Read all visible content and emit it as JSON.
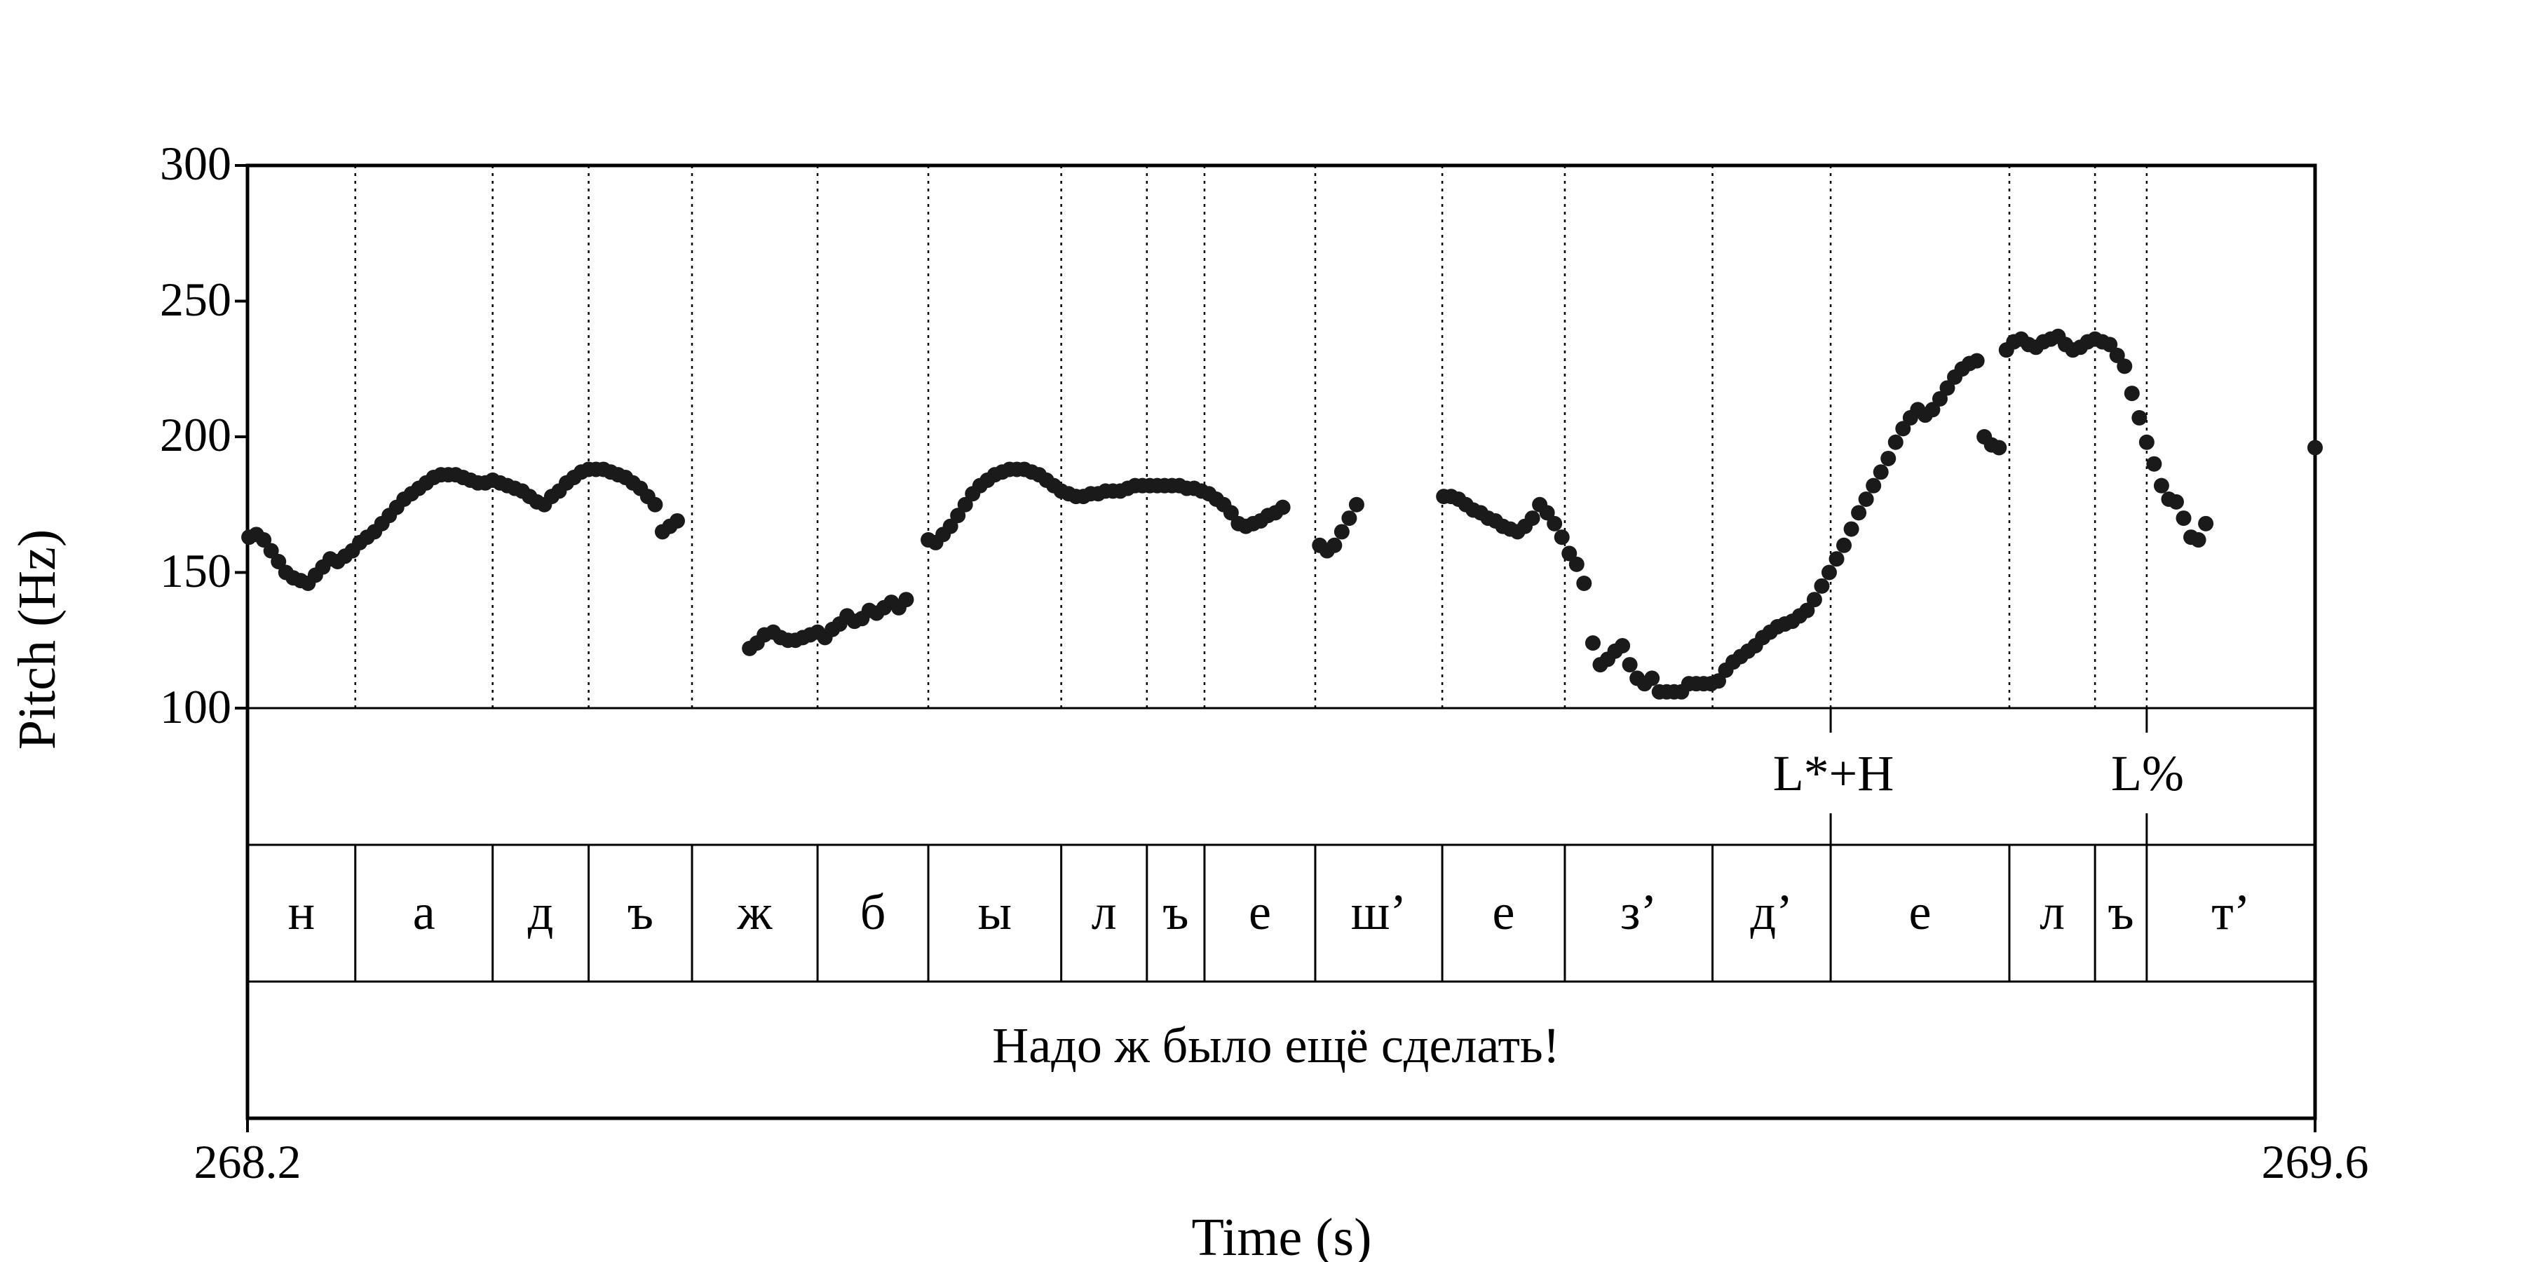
{
  "chart_data": {
    "type": "scatter",
    "xlabel": "Time (s)",
    "ylabel": "Pitch (Hz)",
    "xlim": [
      268.2,
      269.6
    ],
    "ylim": [
      100,
      300
    ],
    "x_ticks": [
      "268.2",
      "269.6"
    ],
    "y_ticks": [
      "100",
      "150",
      "200",
      "250",
      "300"
    ],
    "boundaries": [
      268.2,
      268.273,
      268.366,
      268.431,
      268.501,
      268.586,
      268.661,
      268.751,
      268.809,
      268.848,
      268.923,
      269.009,
      269.092,
      269.192,
      269.272,
      269.393,
      269.451,
      269.486,
      269.6
    ],
    "segments": [
      "н",
      "а",
      "д",
      "ъ",
      "ж",
      "б",
      "ы",
      "л",
      "ъ",
      "е",
      "ш’",
      "е",
      "з’",
      "д’",
      "е",
      "л",
      "ъ",
      "т’"
    ],
    "tones": [
      {
        "time": 269.272,
        "label": "L*+H"
      },
      {
        "time": 269.486,
        "label": "L%"
      }
    ],
    "sentence": "Надо ж было ещё сделать!",
    "pitch_points": [
      [
        268.201,
        163
      ],
      [
        268.206,
        164
      ],
      [
        268.211,
        162
      ],
      [
        268.216,
        158
      ],
      [
        268.221,
        154
      ],
      [
        268.226,
        150
      ],
      [
        268.231,
        148
      ],
      [
        268.236,
        147
      ],
      [
        268.241,
        146
      ],
      [
        268.246,
        149
      ],
      [
        268.251,
        152
      ],
      [
        268.256,
        155
      ],
      [
        268.261,
        154
      ],
      [
        268.266,
        156
      ],
      [
        268.271,
        158
      ],
      [
        268.276,
        161
      ],
      [
        268.281,
        163
      ],
      [
        268.286,
        165
      ],
      [
        268.291,
        168
      ],
      [
        268.296,
        171
      ],
      [
        268.301,
        174
      ],
      [
        268.306,
        177
      ],
      [
        268.311,
        179
      ],
      [
        268.316,
        181
      ],
      [
        268.321,
        183
      ],
      [
        268.326,
        185
      ],
      [
        268.331,
        186
      ],
      [
        268.336,
        186
      ],
      [
        268.341,
        186
      ],
      [
        268.346,
        185
      ],
      [
        268.351,
        184
      ],
      [
        268.356,
        183
      ],
      [
        268.361,
        183
      ],
      [
        268.366,
        184
      ],
      [
        268.371,
        183
      ],
      [
        268.376,
        182
      ],
      [
        268.381,
        181
      ],
      [
        268.386,
        180
      ],
      [
        268.391,
        178
      ],
      [
        268.396,
        176
      ],
      [
        268.401,
        175
      ],
      [
        268.406,
        178
      ],
      [
        268.411,
        180
      ],
      [
        268.416,
        183
      ],
      [
        268.421,
        185
      ],
      [
        268.426,
        187
      ],
      [
        268.431,
        188
      ],
      [
        268.436,
        188
      ],
      [
        268.441,
        188
      ],
      [
        268.446,
        187
      ],
      [
        268.451,
        186
      ],
      [
        268.456,
        185
      ],
      [
        268.461,
        183
      ],
      [
        268.466,
        181
      ],
      [
        268.471,
        178
      ],
      [
        268.476,
        175
      ],
      [
        268.481,
        165
      ],
      [
        268.486,
        167
      ],
      [
        268.491,
        169
      ],
      [
        268.54,
        122
      ],
      [
        268.545,
        124
      ],
      [
        268.55,
        127
      ],
      [
        268.556,
        128
      ],
      [
        268.561,
        126
      ],
      [
        268.566,
        125
      ],
      [
        268.571,
        125
      ],
      [
        268.576,
        126
      ],
      [
        268.581,
        127
      ],
      [
        268.586,
        128
      ],
      [
        268.591,
        126
      ],
      [
        268.596,
        129
      ],
      [
        268.601,
        131
      ],
      [
        268.606,
        134
      ],
      [
        268.611,
        132
      ],
      [
        268.616,
        133
      ],
      [
        268.621,
        136
      ],
      [
        268.626,
        135
      ],
      [
        268.631,
        137
      ],
      [
        268.636,
        139
      ],
      [
        268.641,
        137
      ],
      [
        268.646,
        140
      ],
      [
        268.661,
        162
      ],
      [
        268.666,
        161
      ],
      [
        268.671,
        164
      ],
      [
        268.676,
        167
      ],
      [
        268.681,
        171
      ],
      [
        268.686,
        175
      ],
      [
        268.691,
        179
      ],
      [
        268.696,
        182
      ],
      [
        268.701,
        184
      ],
      [
        268.706,
        186
      ],
      [
        268.711,
        187
      ],
      [
        268.716,
        188
      ],
      [
        268.721,
        188
      ],
      [
        268.726,
        188
      ],
      [
        268.731,
        187
      ],
      [
        268.736,
        186
      ],
      [
        268.741,
        184
      ],
      [
        268.746,
        182
      ],
      [
        268.751,
        180
      ],
      [
        268.756,
        179
      ],
      [
        268.761,
        178
      ],
      [
        268.766,
        178
      ],
      [
        268.771,
        179
      ],
      [
        268.776,
        179
      ],
      [
        268.781,
        180
      ],
      [
        268.786,
        180
      ],
      [
        268.791,
        180
      ],
      [
        268.796,
        181
      ],
      [
        268.801,
        182
      ],
      [
        268.806,
        182
      ],
      [
        268.811,
        182
      ],
      [
        268.816,
        182
      ],
      [
        268.821,
        182
      ],
      [
        268.826,
        182
      ],
      [
        268.831,
        182
      ],
      [
        268.836,
        181
      ],
      [
        268.841,
        181
      ],
      [
        268.846,
        180
      ],
      [
        268.851,
        179
      ],
      [
        268.856,
        177
      ],
      [
        268.861,
        175
      ],
      [
        268.866,
        172
      ],
      [
        268.871,
        168
      ],
      [
        268.876,
        167
      ],
      [
        268.881,
        168
      ],
      [
        268.886,
        169
      ],
      [
        268.891,
        171
      ],
      [
        268.896,
        172
      ],
      [
        268.901,
        174
      ],
      [
        268.926,
        160
      ],
      [
        268.931,
        158
      ],
      [
        268.936,
        160
      ],
      [
        268.941,
        165
      ],
      [
        268.946,
        170
      ],
      [
        268.951,
        175
      ],
      [
        269.01,
        178
      ],
      [
        269.015,
        178
      ],
      [
        269.02,
        177
      ],
      [
        269.025,
        175
      ],
      [
        269.03,
        173
      ],
      [
        269.035,
        172
      ],
      [
        269.04,
        170
      ],
      [
        269.045,
        169
      ],
      [
        269.05,
        167
      ],
      [
        269.055,
        166
      ],
      [
        269.06,
        165
      ],
      [
        269.065,
        167
      ],
      [
        269.07,
        170
      ],
      [
        269.075,
        175
      ],
      [
        269.08,
        172
      ],
      [
        269.085,
        168
      ],
      [
        269.09,
        163
      ],
      [
        269.095,
        157
      ],
      [
        269.1,
        153
      ],
      [
        269.105,
        146
      ],
      [
        269.111,
        124
      ],
      [
        269.116,
        116
      ],
      [
        269.121,
        118
      ],
      [
        269.126,
        121
      ],
      [
        269.131,
        123
      ],
      [
        269.136,
        116
      ],
      [
        269.141,
        111
      ],
      [
        269.146,
        109
      ],
      [
        269.151,
        111
      ],
      [
        269.156,
        106
      ],
      [
        269.161,
        106
      ],
      [
        269.166,
        106
      ],
      [
        269.171,
        106
      ],
      [
        269.176,
        109
      ],
      [
        269.181,
        109
      ],
      [
        269.186,
        109
      ],
      [
        269.191,
        109
      ],
      [
        269.196,
        110
      ],
      [
        269.201,
        114
      ],
      [
        269.206,
        117
      ],
      [
        269.211,
        119
      ],
      [
        269.216,
        121
      ],
      [
        269.221,
        123
      ],
      [
        269.226,
        126
      ],
      [
        269.231,
        128
      ],
      [
        269.236,
        130
      ],
      [
        269.241,
        131
      ],
      [
        269.246,
        132
      ],
      [
        269.251,
        134
      ],
      [
        269.256,
        136
      ],
      [
        269.261,
        140
      ],
      [
        269.266,
        145
      ],
      [
        269.271,
        150
      ],
      [
        269.276,
        155
      ],
      [
        269.281,
        160
      ],
      [
        269.286,
        166
      ],
      [
        269.291,
        172
      ],
      [
        269.296,
        177
      ],
      [
        269.301,
        182
      ],
      [
        269.306,
        187
      ],
      [
        269.311,
        192
      ],
      [
        269.316,
        198
      ],
      [
        269.321,
        203
      ],
      [
        269.326,
        207
      ],
      [
        269.331,
        210
      ],
      [
        269.336,
        208
      ],
      [
        269.341,
        210
      ],
      [
        269.346,
        214
      ],
      [
        269.351,
        218
      ],
      [
        269.356,
        222
      ],
      [
        269.361,
        225
      ],
      [
        269.366,
        227
      ],
      [
        269.371,
        228
      ],
      [
        269.376,
        200
      ],
      [
        269.381,
        197
      ],
      [
        269.386,
        196
      ],
      [
        269.391,
        232
      ],
      [
        269.396,
        235
      ],
      [
        269.401,
        236
      ],
      [
        269.406,
        234
      ],
      [
        269.411,
        233
      ],
      [
        269.416,
        235
      ],
      [
        269.421,
        236
      ],
      [
        269.426,
        237
      ],
      [
        269.431,
        234
      ],
      [
        269.436,
        232
      ],
      [
        269.441,
        233
      ],
      [
        269.446,
        235
      ],
      [
        269.451,
        236
      ],
      [
        269.456,
        235
      ],
      [
        269.461,
        234
      ],
      [
        269.466,
        230
      ],
      [
        269.471,
        226
      ],
      [
        269.476,
        216
      ],
      [
        269.481,
        207
      ],
      [
        269.486,
        198
      ],
      [
        269.491,
        190
      ],
      [
        269.496,
        182
      ],
      [
        269.501,
        177
      ],
      [
        269.506,
        176
      ],
      [
        269.511,
        170
      ],
      [
        269.516,
        163
      ],
      [
        269.521,
        162
      ],
      [
        269.526,
        168
      ],
      [
        269.6,
        196
      ]
    ]
  }
}
